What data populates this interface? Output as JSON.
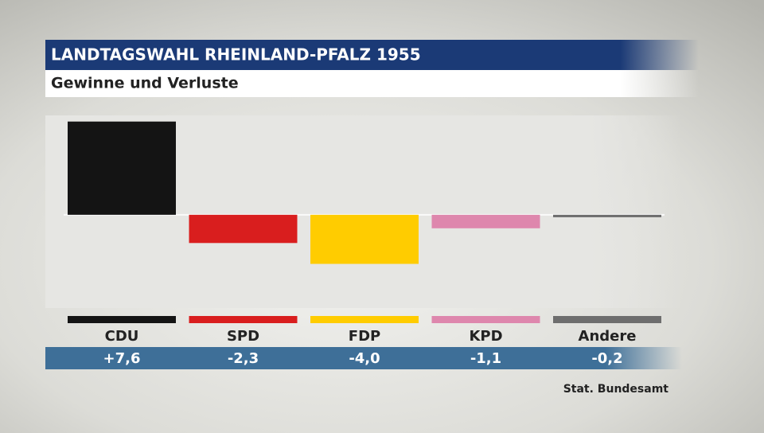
{
  "chart_data": {
    "type": "bar",
    "title": "LANDTAGSWAHL RHEINLAND-PFALZ 1955",
    "subtitle": "Gewinne und Verluste",
    "categories": [
      "CDU",
      "SPD",
      "FDP",
      "KPD",
      "Andere"
    ],
    "values": [
      7.6,
      -2.3,
      -4.0,
      -1.1,
      -0.2
    ],
    "value_labels": [
      "+7,6",
      "-2,3",
      "-4,0",
      "-1,1",
      "-0,2"
    ],
    "colors": [
      "#141414",
      "#d91e1e",
      "#ffcc00",
      "#de87ad",
      "#6e6e6e"
    ],
    "ylim": [
      -7.6,
      8.1
    ],
    "source": "Stat. Bundesamt"
  }
}
